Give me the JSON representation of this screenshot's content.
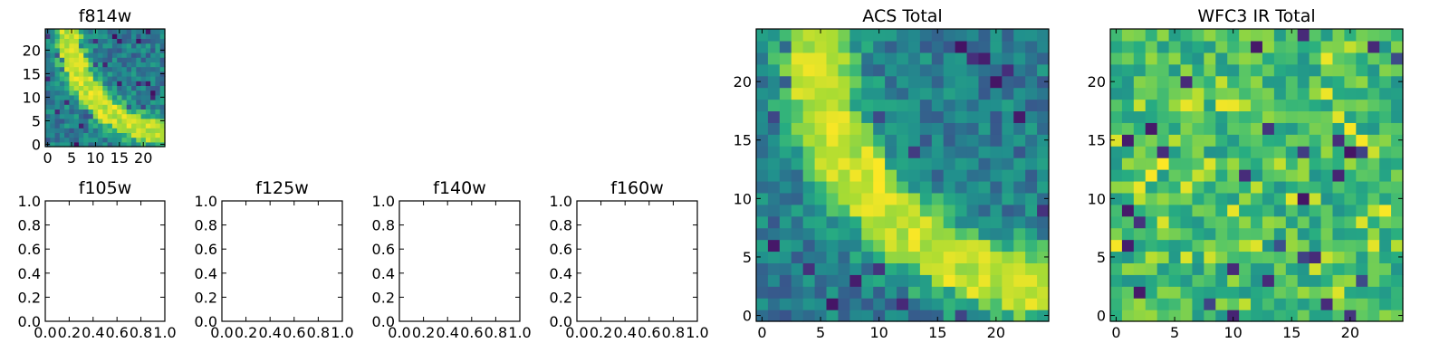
{
  "figure": {
    "background": "#ffffff"
  },
  "chart_data": [
    {
      "type": "heatmap",
      "title": "f814w",
      "colormap": "viridis",
      "grid_size": 25,
      "xlim": [
        -0.5,
        24.5
      ],
      "ylim": [
        -0.5,
        24.5
      ],
      "xticks": [
        0,
        5,
        10,
        15,
        20
      ],
      "xtick_labels": [
        "0",
        "5",
        "10",
        "15",
        "20"
      ],
      "yticks": [
        0,
        5,
        10,
        15,
        20
      ],
      "ytick_labels": [
        "0",
        "5",
        "10",
        "15",
        "20"
      ],
      "features": "noise background with a bright diagonal arc in the lower-right corner"
    },
    {
      "type": "scatter",
      "title": "f105w",
      "xlim": [
        0,
        1
      ],
      "ylim": [
        0,
        1
      ],
      "xticks": [
        0,
        0.2,
        0.4,
        0.6,
        0.8,
        1.0
      ],
      "xtick_labels": [
        "0.0",
        "0.2",
        "0.4",
        "0.6",
        "0.8",
        "1.0"
      ],
      "yticks": [
        0,
        0.2,
        0.4,
        0.6,
        0.8,
        1.0
      ],
      "ytick_labels": [
        "0.0",
        "0.2",
        "0.4",
        "0.6",
        "0.8",
        "1.0"
      ],
      "series": []
    },
    {
      "type": "scatter",
      "title": "f125w",
      "xlim": [
        0,
        1
      ],
      "ylim": [
        0,
        1
      ],
      "xticks": [
        0,
        0.2,
        0.4,
        0.6,
        0.8,
        1.0
      ],
      "xtick_labels": [
        "0.0",
        "0.2",
        "0.4",
        "0.6",
        "0.8",
        "1.0"
      ],
      "yticks": [
        0,
        0.2,
        0.4,
        0.6,
        0.8,
        1.0
      ],
      "ytick_labels": [
        "0.0",
        "0.2",
        "0.4",
        "0.6",
        "0.8",
        "1.0"
      ],
      "series": []
    },
    {
      "type": "scatter",
      "title": "f140w",
      "xlim": [
        0,
        1
      ],
      "ylim": [
        0,
        1
      ],
      "xticks": [
        0,
        0.2,
        0.4,
        0.6,
        0.8,
        1.0
      ],
      "xtick_labels": [
        "0.0",
        "0.2",
        "0.4",
        "0.6",
        "0.8",
        "1.0"
      ],
      "yticks": [
        0,
        0.2,
        0.4,
        0.6,
        0.8,
        1.0
      ],
      "ytick_labels": [
        "0.0",
        "0.2",
        "0.4",
        "0.6",
        "0.8",
        "1.0"
      ],
      "series": []
    },
    {
      "type": "scatter",
      "title": "f160w",
      "xlim": [
        0,
        1
      ],
      "ylim": [
        0,
        1
      ],
      "xticks": [
        0,
        0.2,
        0.4,
        0.6,
        0.8,
        1.0
      ],
      "xtick_labels": [
        "0.0",
        "0.2",
        "0.4",
        "0.6",
        "0.8",
        "1.0"
      ],
      "yticks": [
        0,
        0.2,
        0.4,
        0.6,
        0.8,
        1.0
      ],
      "ytick_labels": [
        "0.0",
        "0.2",
        "0.4",
        "0.6",
        "0.8",
        "1.0"
      ],
      "series": []
    },
    {
      "type": "heatmap",
      "title": "ACS Total",
      "colormap": "viridis",
      "grid_size": 25,
      "xlim": [
        -0.5,
        24.5
      ],
      "ylim": [
        -0.5,
        24.5
      ],
      "xticks": [
        0,
        5,
        10,
        15,
        20
      ],
      "xtick_labels": [
        "0",
        "5",
        "10",
        "15",
        "20"
      ],
      "yticks": [
        0,
        5,
        10,
        15,
        20
      ],
      "ytick_labels": [
        "0",
        "5",
        "10",
        "15",
        "20"
      ],
      "features": "noise background with a bright diagonal arc in the lower-right corner"
    },
    {
      "type": "heatmap",
      "title": "WFC3 IR Total",
      "colormap": "viridis",
      "grid_size": 25,
      "xlim": [
        -0.5,
        24.5
      ],
      "ylim": [
        -0.5,
        24.5
      ],
      "xticks": [
        0,
        5,
        10,
        15,
        20
      ],
      "xtick_labels": [
        "0",
        "5",
        "10",
        "15",
        "20"
      ],
      "yticks": [
        0,
        5,
        10,
        15,
        20
      ],
      "ytick_labels": [
        "0",
        "5",
        "10",
        "15",
        "20"
      ],
      "features": "bright green-yellow noise with no dominant structure"
    }
  ]
}
